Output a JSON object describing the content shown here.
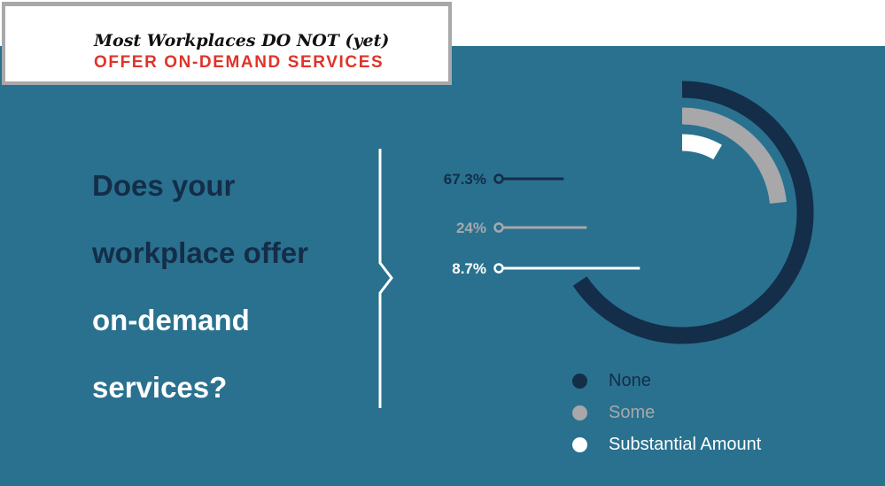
{
  "header": {
    "line1": "Most Workplaces DO NOT (yet)",
    "line2": "OFFER ON-DEMAND SERVICES"
  },
  "question": {
    "lines": [
      "Does your",
      "workplace offer",
      "on-demand",
      "services?"
    ]
  },
  "colors": {
    "panel": "#29718f",
    "none": "#142d48",
    "some": "#a8a8aa",
    "substantial": "#ffffff",
    "accent_red": "#e0332a"
  },
  "chart_data": {
    "type": "radial-bar",
    "title": "Does your workplace offer on-demand services?",
    "categories": [
      "None",
      "Some",
      "Substantial Amount"
    ],
    "values": [
      67.3,
      24,
      8.7
    ],
    "value_labels": [
      "67.3%",
      "24%",
      "8.7%"
    ],
    "unit": "%"
  },
  "legend": {
    "items": [
      {
        "label": "None",
        "color": "#142d48"
      },
      {
        "label": "Some",
        "color": "#a8a8aa"
      },
      {
        "label": "Substantial Amount",
        "color": "#ffffff"
      }
    ]
  }
}
